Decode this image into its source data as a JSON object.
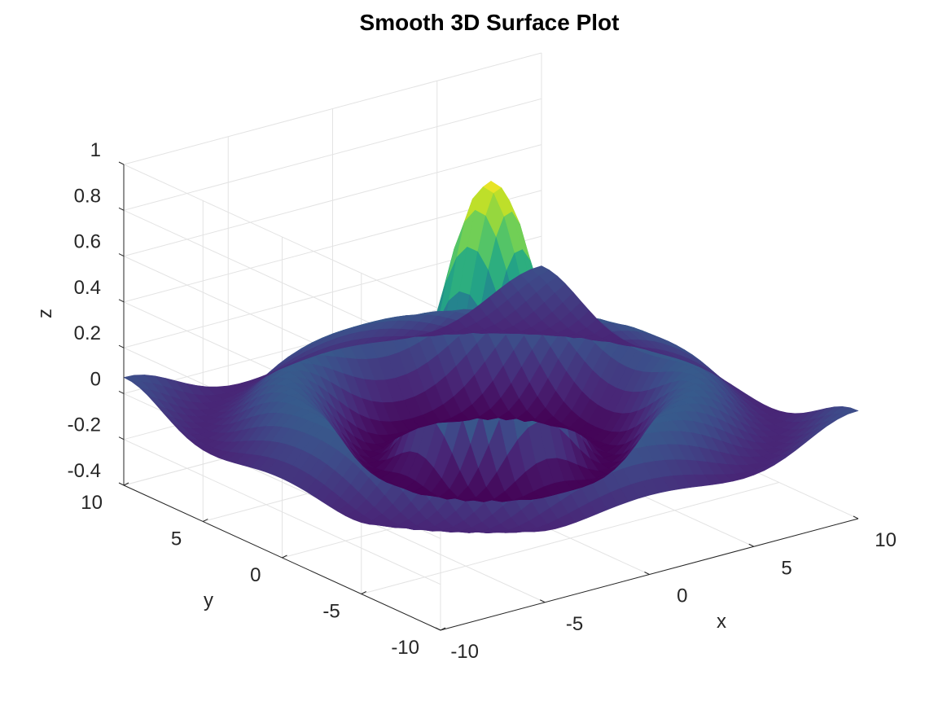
{
  "chart_data": {
    "type": "surface",
    "title": "Smooth 3D Surface Plot",
    "xlabel": "x",
    "ylabel": "y",
    "zlabel": "z",
    "xlim": [
      -10,
      10
    ],
    "ylim": [
      -10,
      10
    ],
    "zlim": [
      -0.4,
      1
    ],
    "xticks": [
      -10,
      -5,
      0,
      5,
      10
    ],
    "yticks": [
      -10,
      -5,
      0,
      5,
      10
    ],
    "zticks": [
      -0.4,
      -0.2,
      0,
      0.2,
      0.4,
      0.6,
      0.8,
      1
    ],
    "xtick_labels": [
      "-10",
      "-5",
      "0",
      "5",
      "10"
    ],
    "ytick_labels": [
      "-10",
      "-5",
      "0",
      "5",
      "10"
    ],
    "ztick_labels": [
      "-0.4",
      "-0.2",
      "0",
      "0.2",
      "0.4",
      "0.6",
      "0.8",
      "1"
    ],
    "grid": true,
    "colormap": "viridis",
    "surface": {
      "function": "sin(r)/r",
      "r": "sqrt(x^2 + y^2)",
      "x_range": [
        -10,
        10
      ],
      "y_range": [
        -10,
        10
      ],
      "samples_per_axis": 41,
      "peak": {
        "x": 0,
        "y": 0,
        "z": 1
      },
      "trough_z": -0.217
    },
    "colors": {
      "axis": "#262626",
      "grid": "#e3e3e3",
      "colormap_stops": [
        "#440154",
        "#482878",
        "#3e4a89",
        "#31688e",
        "#26828e",
        "#1f9e89",
        "#35b779",
        "#6ece58",
        "#b5de2b",
        "#fde725"
      ]
    }
  }
}
